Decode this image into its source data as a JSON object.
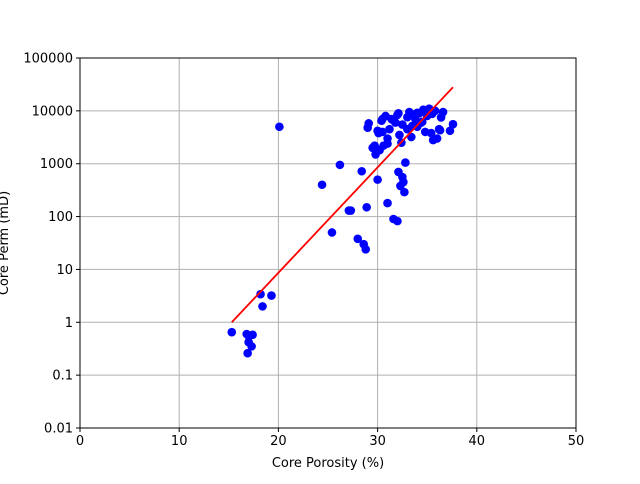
{
  "chart_data": {
    "type": "scatter",
    "title": "",
    "xlabel": "Core Porosity (%)",
    "ylabel": "Core Perm (mD)",
    "xlim": [
      0,
      50
    ],
    "ylim": [
      0.01,
      100000
    ],
    "yscale": "log",
    "grid": true,
    "x_ticks": [
      0,
      10,
      20,
      30,
      40,
      50
    ],
    "x_tick_labels": [
      "0",
      "10",
      "20",
      "30",
      "40",
      "50"
    ],
    "y_ticks": [
      0.01,
      0.1,
      1,
      10,
      100,
      1000,
      10000,
      100000
    ],
    "y_tick_labels": [
      "0.01",
      "0.1",
      "1",
      "10",
      "100",
      "1000",
      "10000",
      "100000"
    ],
    "colors": {
      "points": "#0000ff",
      "fit_line": "#ff0000",
      "grid": "#b0b0b0",
      "axes": "#000000"
    },
    "series": [
      {
        "type": "scatter",
        "x": [
          15.3,
          16.8,
          17.0,
          17.4,
          16.9,
          17.3,
          17.0,
          18.2,
          18.4,
          19.3,
          20.1,
          24.4,
          25.4,
          26.2,
          27.1,
          27.3,
          28.0,
          28.4,
          28.6,
          28.8,
          28.9,
          29.0,
          29.1,
          29.7,
          29.8,
          30.0,
          30.1,
          30.2,
          30.4,
          30.5,
          30.6,
          30.8,
          31.0,
          31.0,
          31.2,
          31.4,
          31.6,
          31.8,
          32.0,
          32.1,
          32.1,
          32.2,
          32.3,
          32.4,
          32.5,
          32.6,
          32.7,
          32.8,
          33.0,
          33.2,
          33.4,
          33.6,
          33.8,
          34.0,
          34.2,
          34.4,
          34.6,
          34.8,
          35.0,
          35.2,
          35.4,
          35.6,
          35.8,
          36.0,
          36.2,
          36.4,
          36.6,
          37.3,
          37.6,
          34.5,
          33.5,
          32.5,
          31.5,
          30.5,
          29.5,
          32.0,
          33.0,
          34.0,
          35.5,
          36.3,
          31.0,
          30.0
        ],
        "y": [
          0.65,
          0.6,
          0.42,
          0.58,
          0.26,
          0.35,
          0.55,
          3.4,
          2.0,
          3.2,
          5000,
          400,
          50,
          950,
          130,
          130,
          38,
          720,
          30,
          24,
          150,
          4800,
          5800,
          2200,
          1500,
          500,
          3800,
          1800,
          6500,
          4000,
          2200,
          8000,
          180,
          2400,
          4500,
          7000,
          90,
          6000,
          82,
          9000,
          700,
          3500,
          380,
          2500,
          560,
          450,
          290,
          1050,
          4500,
          9500,
          3200,
          8500,
          7000,
          5000,
          9000,
          6000,
          10500,
          4000,
          8000,
          11000,
          3800,
          2800,
          10000,
          3000,
          4500,
          7500,
          9500,
          4200,
          5600,
          6200,
          5200,
          5500,
          6800,
          7000,
          2000,
          8400,
          7600,
          9200,
          8800,
          4300,
          3000,
          4200
        ]
      },
      {
        "type": "line",
        "x": [
          15.3,
          37.6
        ],
        "y": [
          1.0,
          28000
        ]
      }
    ]
  }
}
